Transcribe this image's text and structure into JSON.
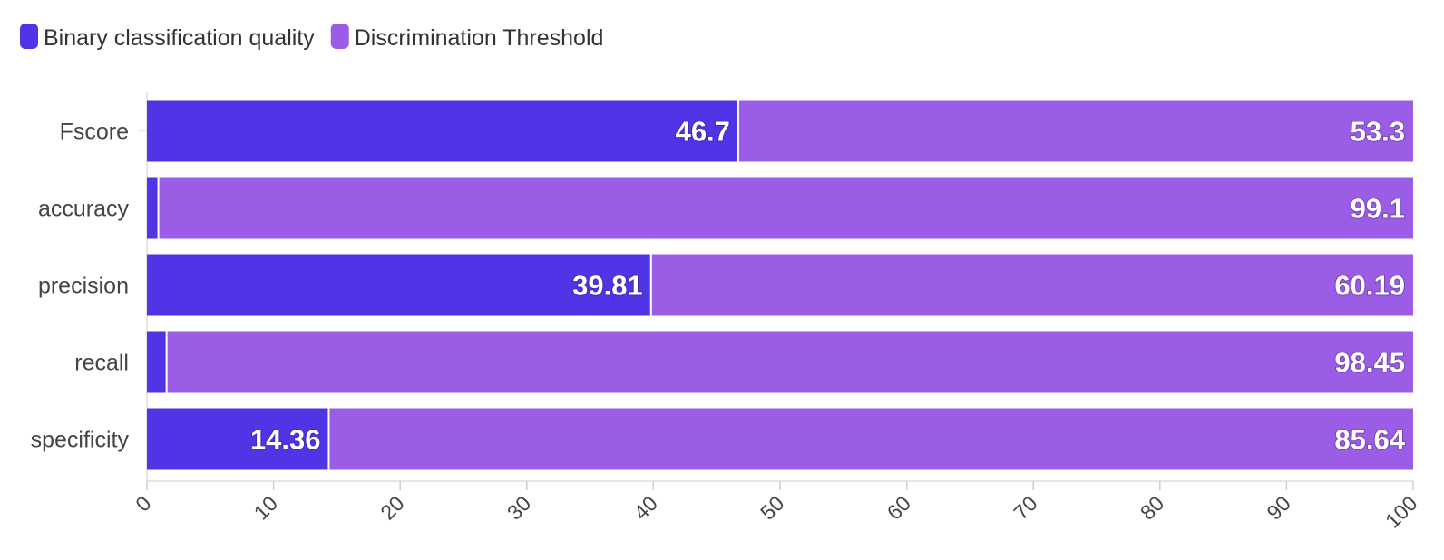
{
  "chart_data": {
    "type": "bar",
    "orientation": "horizontal",
    "stacked": true,
    "categories": [
      "Fscore",
      "accuracy",
      "precision",
      "recall",
      "specificity"
    ],
    "series": [
      {
        "name": "Binary classification quality",
        "color": "#4f35e6",
        "values": [
          46.7,
          0.9,
          39.81,
          1.55,
          14.36
        ],
        "labels": [
          "46.7",
          "",
          "39.81",
          "",
          "14.36"
        ]
      },
      {
        "name": "Discrimination Threshold",
        "color": "#9b5de5",
        "values": [
          53.3,
          99.1,
          60.19,
          98.45,
          85.64
        ],
        "labels": [
          "53.3",
          "99.1",
          "60.19",
          "98.45",
          "85.64"
        ]
      }
    ],
    "xlim": [
      0,
      100
    ],
    "xticks": [
      "0",
      "10",
      "20",
      "30",
      "40",
      "50",
      "60",
      "70",
      "80",
      "90",
      "100"
    ],
    "legend_position": "top-left",
    "grid": false
  }
}
